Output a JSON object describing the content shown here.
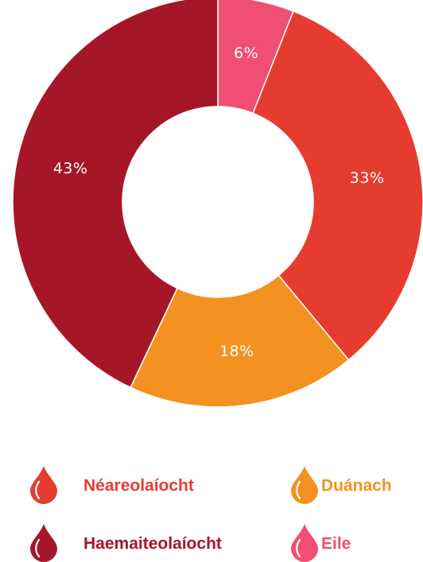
{
  "chart_data": {
    "type": "donut",
    "categories": [
      "Eile",
      "Néareolaíocht",
      "Duánach",
      "Haemaiteolaíocht"
    ],
    "values": [
      6,
      33,
      18,
      43
    ],
    "value_labels": [
      "6%",
      "33%",
      "18%",
      "43%"
    ],
    "colors": [
      "#f04e73",
      "#e63c2f",
      "#f39220",
      "#a51728"
    ]
  }
}
